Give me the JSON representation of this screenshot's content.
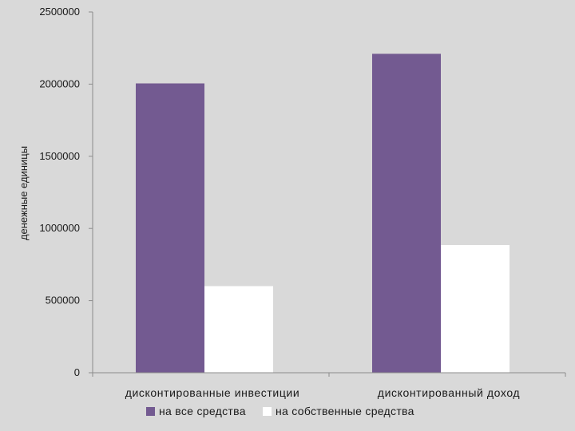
{
  "chart_data": {
    "type": "bar",
    "title": "",
    "xlabel": "",
    "ylabel": "денежные единицы",
    "ylim": [
      0,
      2500000
    ],
    "yticks": [
      0,
      500000,
      1000000,
      1500000,
      2000000,
      2500000
    ],
    "categories": [
      "дисконтированные инвестиции",
      "дисконтированный доход"
    ],
    "series": [
      {
        "name": "на все средства",
        "color": "#735a91",
        "values": [
          2005000,
          2210000
        ]
      },
      {
        "name": "на собственные средства",
        "color": "#ffffff",
        "values": [
          600000,
          885000
        ]
      }
    ],
    "grid": false,
    "legend": "bottom"
  }
}
